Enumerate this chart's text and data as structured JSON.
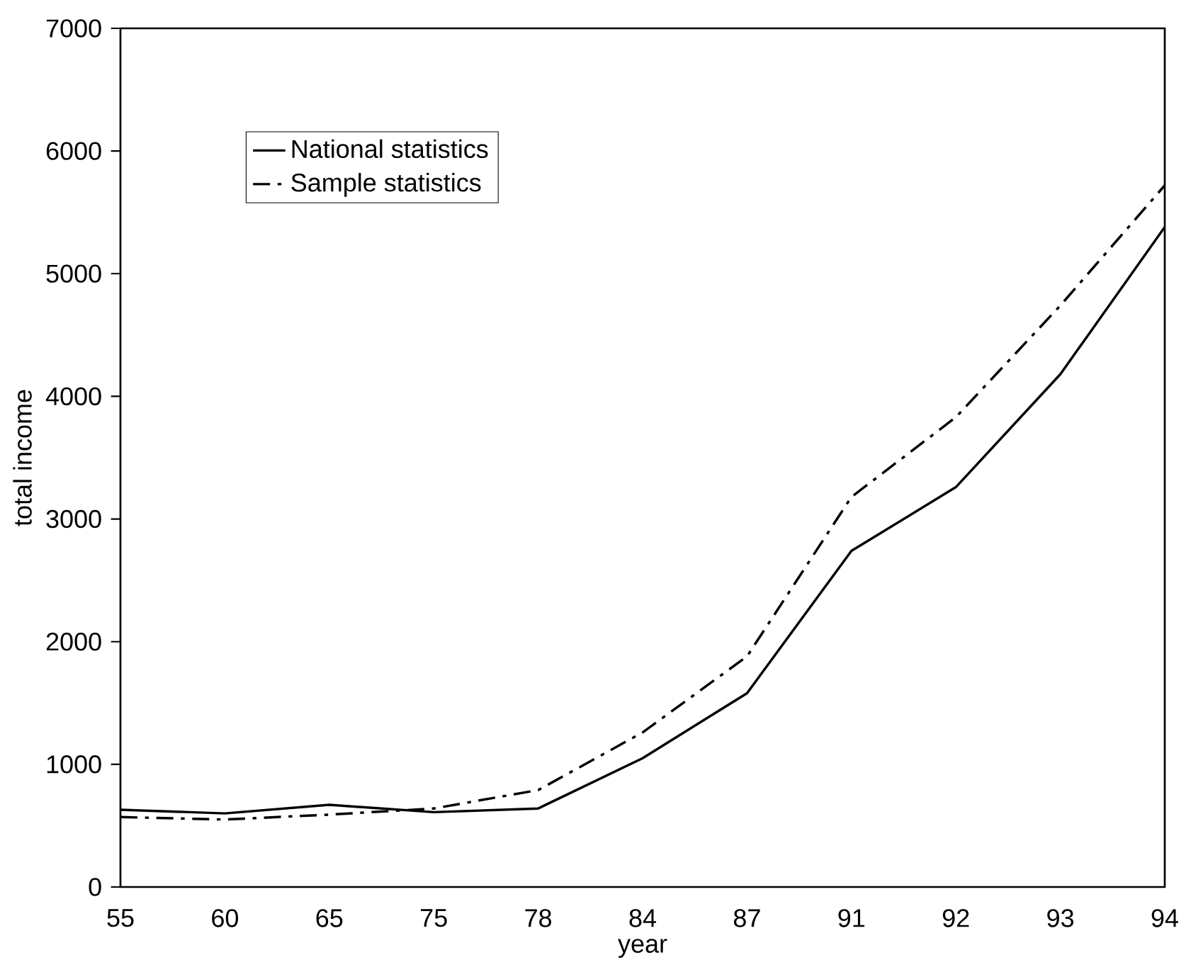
{
  "chart_data": {
    "type": "line",
    "xlabel": "year",
    "ylabel": "total income",
    "categories": [
      "55",
      "60",
      "65",
      "75",
      "78",
      "84",
      "87",
      "91",
      "92",
      "93",
      "94"
    ],
    "series": [
      {
        "name": "National statistics",
        "color": "#000000",
        "line_style": "solid",
        "values": [
          630,
          600,
          670,
          610,
          640,
          1050,
          1580,
          2740,
          3260,
          4180,
          5380
        ]
      },
      {
        "name": "Sample statistics",
        "color": "#000000",
        "line_style": "dashdot",
        "values": [
          570,
          550,
          590,
          640,
          790,
          1260,
          1880,
          3180,
          3830,
          4740,
          5720
        ]
      }
    ],
    "ylim": [
      0,
      7000
    ],
    "yticks": [
      0,
      1000,
      2000,
      3000,
      4000,
      5000,
      6000,
      7000
    ],
    "grid": false,
    "legend": "top left",
    "marker": "none"
  }
}
